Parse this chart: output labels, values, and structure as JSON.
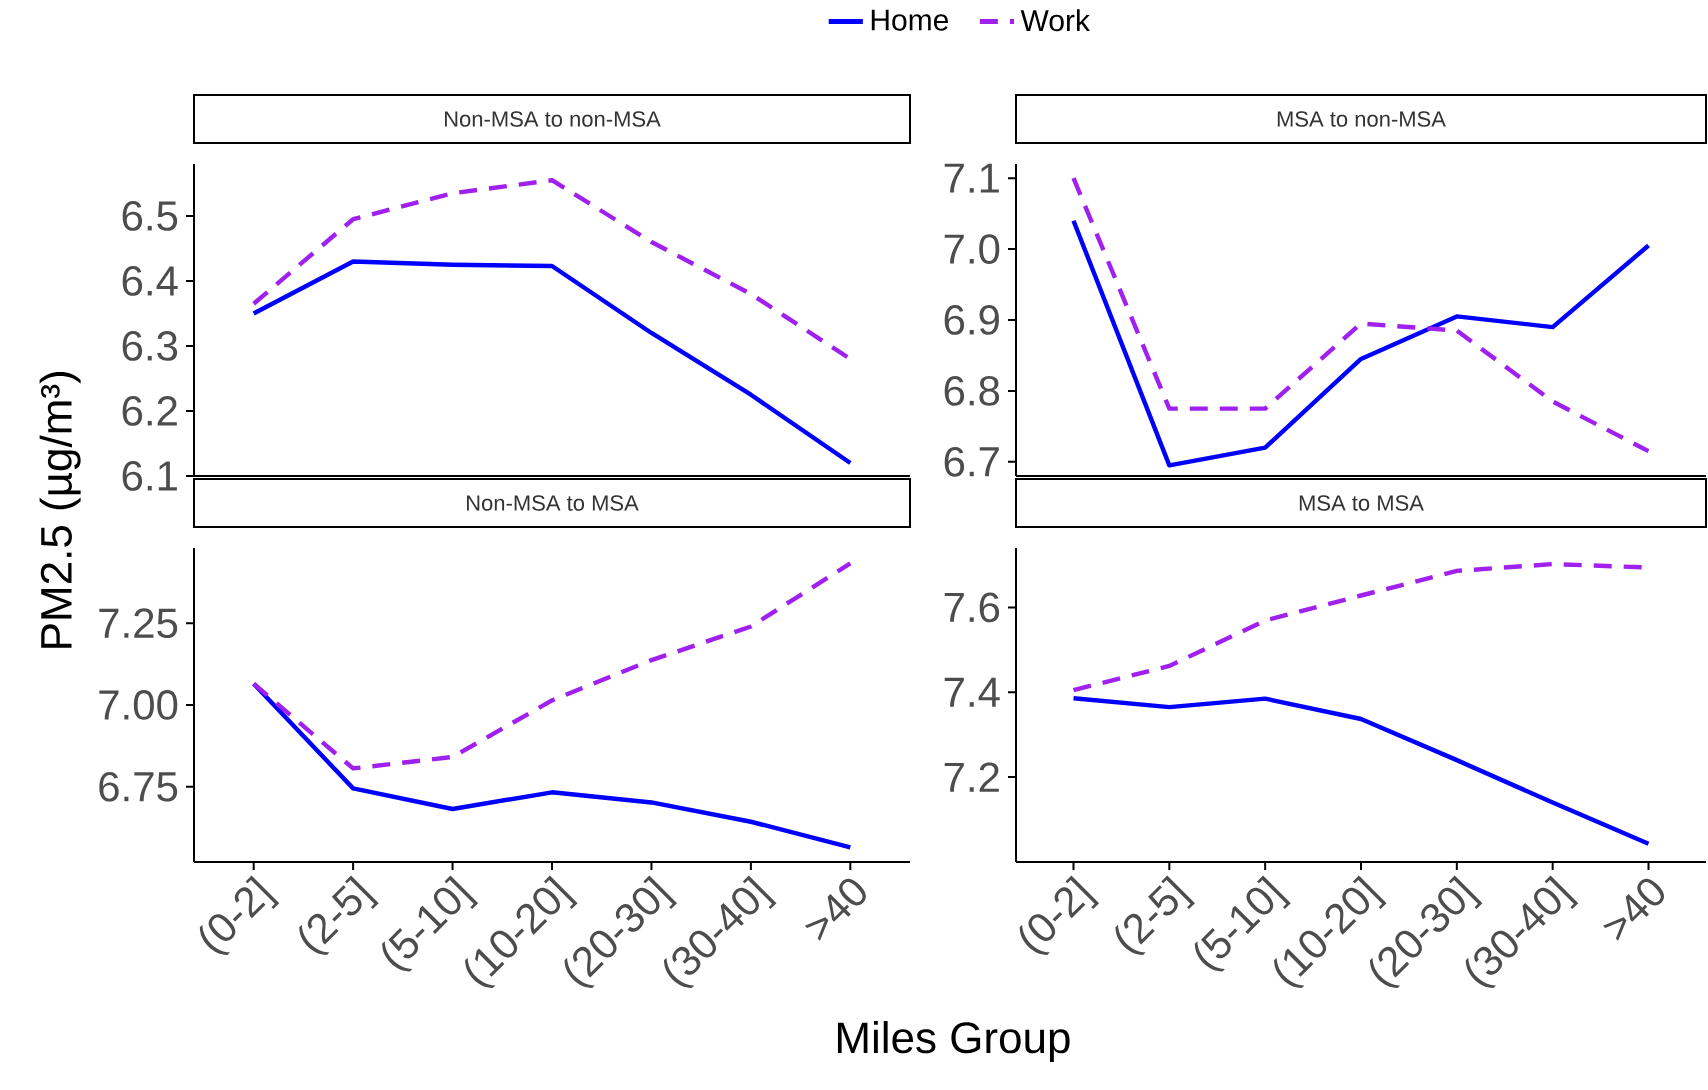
{
  "chart_data": [
    {
      "type": "line",
      "title": "Non-MSA to non-MSA",
      "categories": [
        null,
        null,
        null,
        null,
        null,
        null,
        null
      ],
      "ylim": [
        6.1,
        6.58
      ],
      "yticks": [
        6.1,
        6.2,
        6.3,
        6.4,
        6.5
      ],
      "tick_labels": "y",
      "legend": "top",
      "marker": "none",
      "series": [
        {
          "name": "Home",
          "color": "#0000ff",
          "line_style": "solid",
          "values": [
            6.35,
            6.43,
            6.425,
            6.423,
            6.32,
            6.225,
            6.12
          ]
        },
        {
          "name": "Work",
          "color": "#a020f0",
          "line_style": "dashed",
          "values": [
            6.365,
            6.495,
            6.535,
            6.555,
            6.46,
            6.38,
            6.28
          ]
        }
      ]
    },
    {
      "type": "line",
      "title": "MSA to non-MSA",
      "categories": [
        null,
        null,
        null,
        null,
        null,
        null,
        null
      ],
      "ylim": [
        6.68,
        7.12
      ],
      "yticks": [
        6.7,
        6.8,
        6.9,
        {
          "value": 7.0,
          "label": "7.0"
        },
        7.1
      ],
      "tick_labels": "y",
      "marker": "none",
      "series": [
        {
          "color": "#0000ff",
          "line_style": "solid",
          "values": [
            7.04,
            6.695,
            6.72,
            6.845,
            6.905,
            6.89,
            7.005
          ]
        },
        {
          "color": "#a020f0",
          "line_style": "dashed",
          "values": [
            7.1,
            6.775,
            6.775,
            6.895,
            6.885,
            6.785,
            6.715
          ]
        }
      ]
    },
    {
      "type": "line",
      "title": "Non-MSA to MSA",
      "xlabel": "Miles Group",
      "ylabel": "PM2.5 (µg/m³)",
      "categories": [
        "(0-2]",
        "(2-5]",
        "(5-10]",
        "(10-20]",
        "(20-30]",
        "(30-40]",
        ">40"
      ],
      "ylim": [
        6.52,
        7.48
      ],
      "yticks": [
        {
          "value": 6.75,
          "label": "6.75"
        },
        {
          "value": 7.0,
          "label": "7.00"
        },
        {
          "value": 7.25,
          "label": "7.25"
        }
      ],
      "marker": "none",
      "series": [
        {
          "color": "#0000ff",
          "line_style": "solid",
          "values": [
            7.065,
            6.745,
            6.682,
            6.733,
            6.702,
            6.643,
            6.565
          ]
        },
        {
          "color": "#a020f0",
          "line_style": "dashed",
          "values": [
            7.065,
            6.806,
            6.841,
            7.014,
            7.137,
            7.24,
            7.433
          ]
        }
      ]
    },
    {
      "type": "line",
      "title": "MSA to MSA",
      "categories": [
        "(0-2]",
        "(2-5]",
        "(5-10]",
        "(10-20]",
        "(20-30]",
        "(30-40]",
        ">40"
      ],
      "ylim": [
        7.0,
        7.74
      ],
      "yticks": [
        7.2,
        7.4,
        7.6
      ],
      "marker": "none",
      "series": [
        {
          "color": "#0000ff",
          "line_style": "solid",
          "values": [
            7.386,
            7.365,
            7.385,
            7.337,
            7.24,
            7.14,
            7.043
          ]
        },
        {
          "color": "#a020f0",
          "line_style": "dashed",
          "values": [
            7.405,
            7.462,
            7.569,
            7.628,
            7.686,
            7.702,
            7.694
          ]
        }
      ]
    }
  ]
}
